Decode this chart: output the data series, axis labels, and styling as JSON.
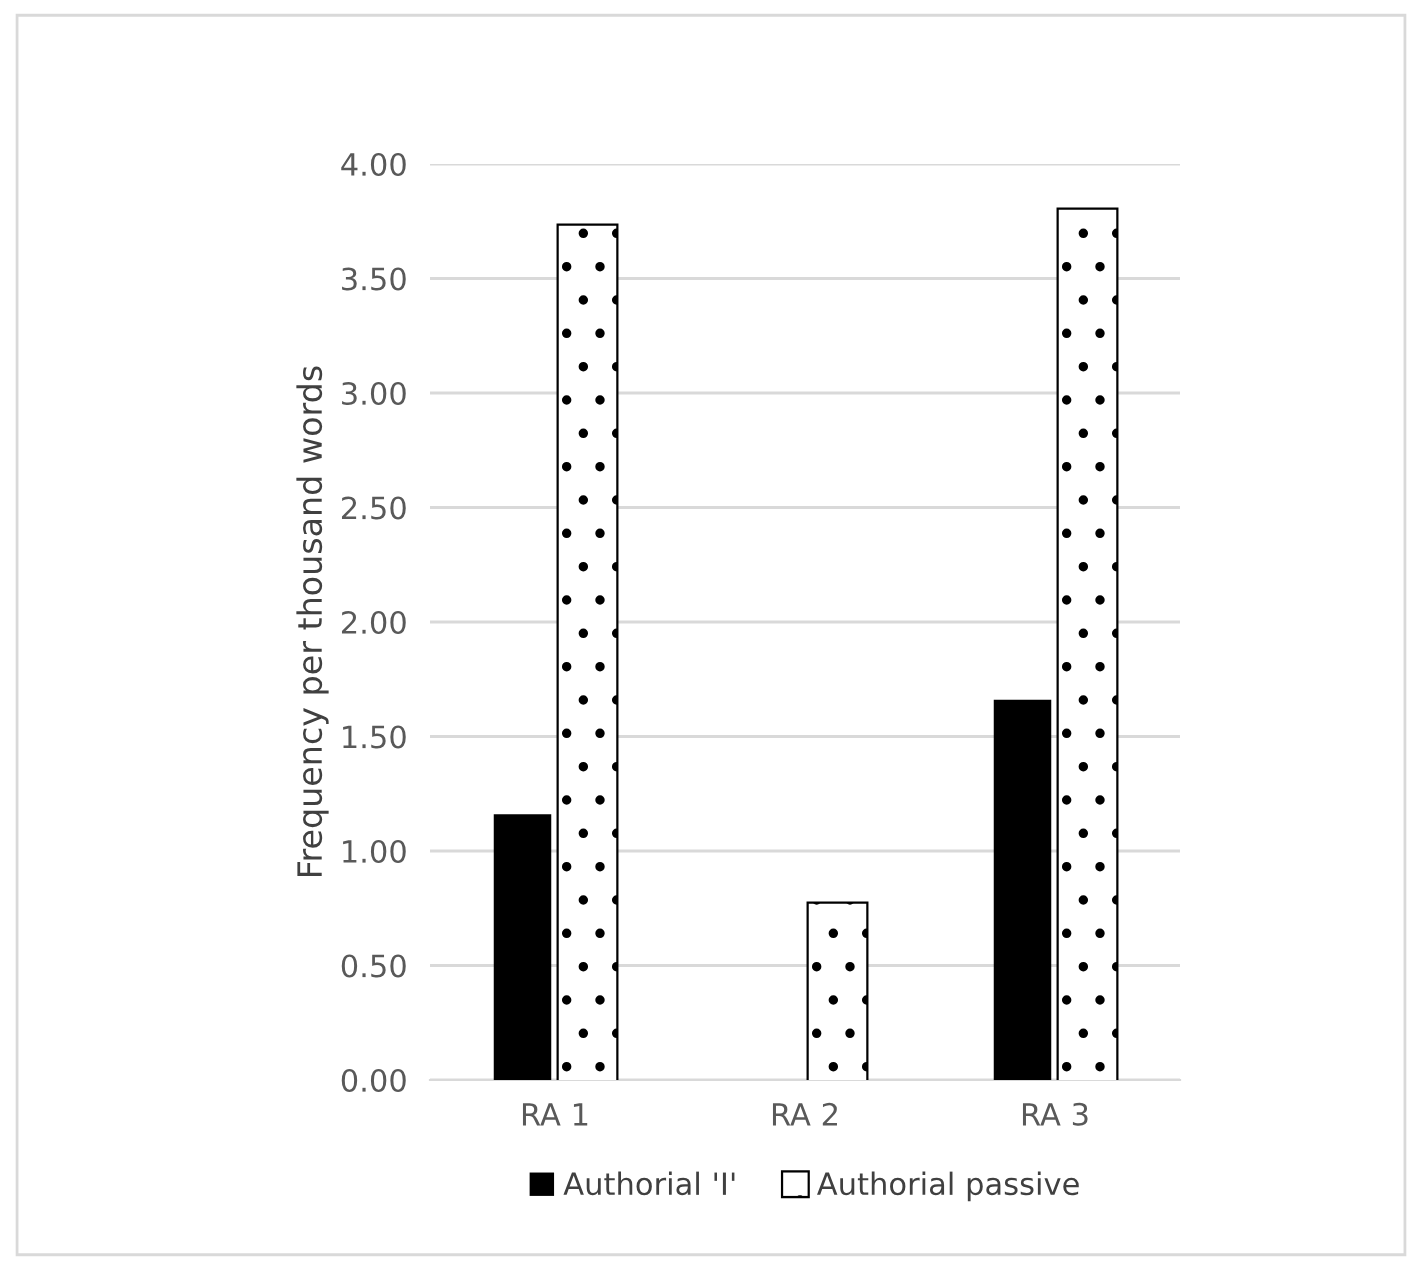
{
  "chart_data": {
    "type": "bar",
    "ylabel": "Frequency per thousand words",
    "categories": [
      "RA 1",
      "RA 2",
      "RA 3"
    ],
    "series": [
      {
        "name": "Authorial 'I'",
        "color": "#000000",
        "values": [
          1.16,
          0,
          1.66
        ]
      },
      {
        "name": "Authorial passive",
        "color": "#ffffff",
        "values": [
          3.73,
          0.77,
          3.8
        ]
      }
    ],
    "ylim": [
      0,
      4
    ],
    "yticks": [
      {
        "value": 0,
        "label": "0.00"
      },
      {
        "value": 0.5,
        "label": "0.50"
      },
      {
        "value": 1,
        "label": "1.00"
      },
      {
        "value": 1.5,
        "label": "1.50"
      },
      {
        "value": 2,
        "label": "2.00"
      },
      {
        "value": 2.5,
        "label": "2.50"
      },
      {
        "value": 3,
        "label": "3.00"
      },
      {
        "value": 3.5,
        "label": "3.50"
      },
      {
        "value": 4,
        "label": "4.00"
      }
    ],
    "grid": "y",
    "legend": "bottom"
  }
}
